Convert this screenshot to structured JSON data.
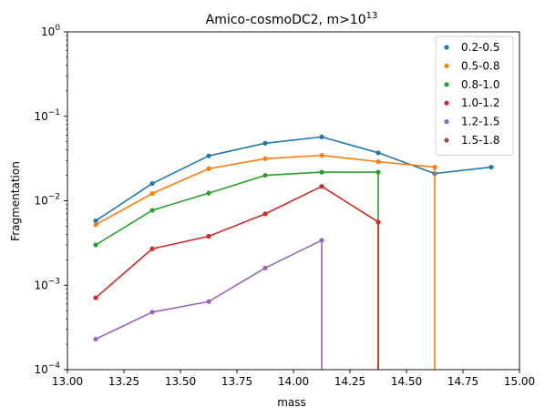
{
  "chart_data": {
    "type": "line",
    "title_base": "Amico-cosmoDC2, m>10",
    "title_exponent": "13",
    "xlabel": "mass",
    "ylabel": "Fragmentation",
    "xlim": [
      13.0,
      15.0
    ],
    "ylim": [
      0.0001,
      1
    ],
    "yscale": "log",
    "x_ticks": [
      13.0,
      13.25,
      13.5,
      13.75,
      14.0,
      14.25,
      14.5,
      14.75,
      15.0
    ],
    "x_tick_labels": [
      "13.00",
      "13.25",
      "13.50",
      "13.75",
      "14.00",
      "14.25",
      "14.50",
      "14.75",
      "15.00"
    ],
    "y_ticks": [
      {
        "value": 0.0001,
        "base": "10",
        "exp": "−4"
      },
      {
        "value": 0.001,
        "base": "10",
        "exp": "−3"
      },
      {
        "value": 0.01,
        "base": "10",
        "exp": "−2"
      },
      {
        "value": 0.1,
        "base": "10",
        "exp": "−1"
      },
      {
        "value": 1,
        "base": "10",
        "exp": "0"
      }
    ],
    "grid": false,
    "legend_position": "top-right",
    "series": [
      {
        "name": "0.2-0.5",
        "color": "#1f77b4",
        "x": [
          13.125,
          13.375,
          13.625,
          13.875,
          14.125,
          14.375,
          14.625,
          14.875
        ],
        "y": [
          0.0058,
          0.016,
          0.034,
          0.048,
          0.057,
          0.037,
          0.021,
          0.025
        ],
        "drop_to_floor": false
      },
      {
        "name": "0.5-0.8",
        "color": "#ff7f0e",
        "x": [
          13.125,
          13.375,
          13.625,
          13.875,
          14.125,
          14.375,
          14.625
        ],
        "y": [
          0.0052,
          0.0122,
          0.024,
          0.0315,
          0.0345,
          0.029,
          0.025
        ],
        "drop_to_floor": true
      },
      {
        "name": "0.8-1.0",
        "color": "#2ca02c",
        "x": [
          13.125,
          13.375,
          13.625,
          13.875,
          14.125,
          14.375
        ],
        "y": [
          0.003,
          0.0077,
          0.0123,
          0.02,
          0.0218,
          0.0218
        ],
        "drop_to_floor": true
      },
      {
        "name": "1.0-1.2",
        "color": "#d62728",
        "x": [
          13.125,
          13.375,
          13.625,
          13.875,
          14.125,
          14.375
        ],
        "y": [
          0.00071,
          0.0027,
          0.0038,
          0.007,
          0.0148,
          0.0056
        ],
        "drop_to_floor": true
      },
      {
        "name": "1.2-1.5",
        "color": "#9467bd",
        "x": [
          13.125,
          13.375,
          13.625,
          13.875,
          14.125
        ],
        "y": [
          0.00023,
          0.00048,
          0.00064,
          0.0016,
          0.0034
        ],
        "drop_to_floor": true
      },
      {
        "name": "1.5-1.8",
        "color": "#8c564b",
        "x": [],
        "y": [],
        "drop_to_floor": false
      }
    ]
  }
}
